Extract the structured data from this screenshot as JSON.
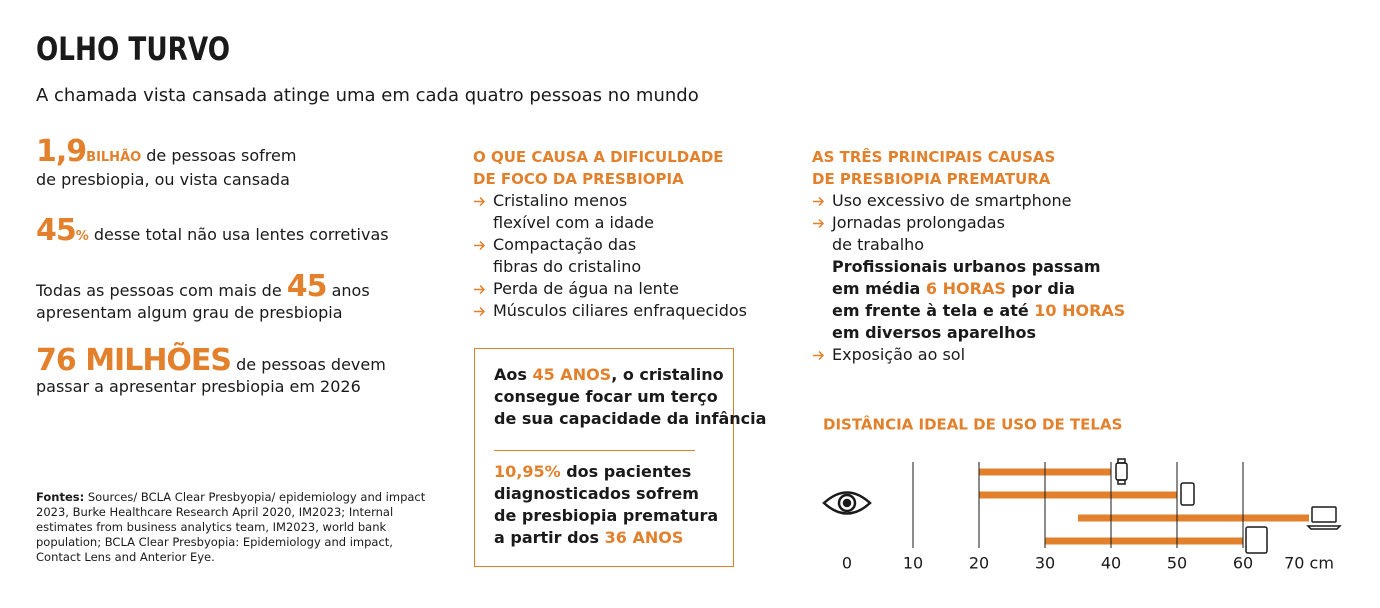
{
  "header": {
    "title": "OLHO TURVO",
    "subtitle": "A chamada vista cansada atinge uma em cada quatro pessoas no mundo"
  },
  "facts": [
    {
      "lines": [
        [
          {
            "text": "1,9",
            "style": "big"
          },
          {
            "text": "BILHÃO",
            "style": "unit"
          },
          {
            "text": " de pessoas sofrem"
          }
        ],
        [
          {
            "text": "de presbiopia, ou vista cansada"
          }
        ]
      ]
    },
    {
      "lines": [
        [
          {
            "text": "45",
            "style": "big"
          },
          {
            "text": "%",
            "style": "unit"
          },
          {
            "text": " desse total não usa lentes corretivas"
          }
        ]
      ]
    },
    {
      "lines": [
        [
          {
            "text": "Todas as pessoas com mais de "
          },
          {
            "text": "45",
            "style": "big"
          },
          {
            "text": " anos"
          }
        ],
        [
          {
            "text": "apresentam algum grau de presbiopia"
          }
        ]
      ]
    },
    {
      "lines": [
        [
          {
            "text": "76 MILHÕES",
            "style": "big"
          },
          {
            "text": " de pessoas devem"
          }
        ],
        [
          {
            "text": "passar a apresentar presbiopia em 2026"
          }
        ]
      ]
    }
  ],
  "sources": {
    "label": "Fontes:",
    "text": " Sources/ BCLA Clear Presbyopia/ epidemiology and impact 2023, Burke Healthcare Research April 2020, IM2023; Internal estimates from business analytics team, IM2023, world bank population; BCLA Clear Presbyopia: Epidemiology and impact, Contact Lens and Anterior Eye."
  },
  "causes": {
    "heading": [
      "O QUE CAUSA A DIFICULDADE",
      "DE FOCO DA PRESBIOPIA"
    ],
    "items": [
      {
        "lines": [
          [
            {
              "text": "Cristalino menos"
            }
          ],
          [
            {
              "text": "flexível com a idade"
            }
          ]
        ]
      },
      {
        "lines": [
          [
            {
              "text": "Compactação das"
            }
          ],
          [
            {
              "text": "fibras do cristalino"
            }
          ]
        ]
      },
      {
        "lines": [
          [
            {
              "text": "Perda de água na lente"
            }
          ]
        ]
      },
      {
        "lines": [
          [
            {
              "text": "Músculos ciliares enfraquecidos"
            }
          ]
        ]
      }
    ]
  },
  "box": {
    "top": {
      "lines": [
        [
          {
            "text": "Aos ",
            "style": "bold"
          },
          {
            "text": "45 ANOS",
            "style": "hl"
          },
          {
            "text": ", o cristalino",
            "style": "bold"
          }
        ],
        [
          {
            "text": "consegue focar um terço",
            "style": "bold"
          }
        ],
        [
          {
            "text": "de sua capacidade da infância",
            "style": "bold"
          }
        ]
      ]
    },
    "bottom": {
      "lines": [
        [
          {
            "text": "10,95%",
            "style": "hl"
          },
          {
            "text": " dos pacientes",
            "style": "bold"
          }
        ],
        [
          {
            "text": "diagnosticados sofrem",
            "style": "bold"
          }
        ],
        [
          {
            "text": "de presbiopia prematura",
            "style": "bold"
          }
        ],
        [
          {
            "text": "a partir dos ",
            "style": "bold"
          },
          {
            "text": "36 ANOS",
            "style": "hl"
          }
        ]
      ]
    }
  },
  "premature": {
    "heading": [
      "AS TRÊS PRINCIPAIS CAUSAS",
      "DE PRESBIOPIA PREMATURA"
    ],
    "items": [
      {
        "lines": [
          [
            {
              "text": "Uso excessivo de smartphone"
            }
          ]
        ]
      },
      {
        "lines": [
          [
            {
              "text": "Jornadas prolongadas"
            }
          ],
          [
            {
              "text": "de trabalho"
            }
          ],
          [
            {
              "text": "Profissionais urbanos passam",
              "style": "bold"
            }
          ],
          [
            {
              "text": "em média ",
              "style": "bold"
            },
            {
              "text": "6 HORAS",
              "style": "hl"
            },
            {
              "text": " por dia",
              "style": "bold"
            }
          ],
          [
            {
              "text": "em frente à tela e até ",
              "style": "bold"
            },
            {
              "text": "10 HORAS",
              "style": "hl"
            }
          ],
          [
            {
              "text": "em diversos aparelhos",
              "style": "bold"
            }
          ]
        ]
      },
      {
        "lines": [
          [
            {
              "text": "Exposição ao sol"
            }
          ]
        ]
      }
    ]
  },
  "chart_data": {
    "type": "range-bar",
    "title": "DISTÂNCIA IDEAL DE USO DE TELAS",
    "xlim": [
      0,
      70
    ],
    "xticks": [
      0,
      10,
      20,
      30,
      40,
      50,
      60,
      {
        "value": 70,
        "label": "70 cm"
      }
    ],
    "ranges": [
      {
        "start": 20,
        "end": 40
      },
      {
        "start": 20,
        "end": 50
      },
      {
        "start": 35,
        "end": 70
      },
      {
        "start": 30,
        "end": 60
      }
    ],
    "color": "#e3802c",
    "grid": true
  }
}
